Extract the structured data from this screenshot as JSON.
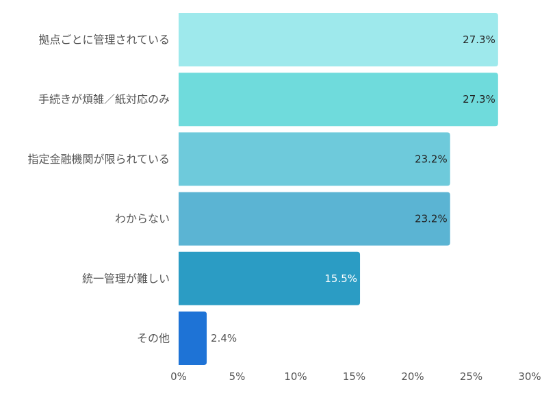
{
  "chart_data": {
    "type": "bar",
    "orientation": "horizontal",
    "categories": [
      "拠点ごとに管理されている",
      "手続きが煩雑／紙対応のみ",
      "指定金融機関が限られている",
      "わからない",
      "統一管理が難しい",
      "その他"
    ],
    "values": [
      27.3,
      27.3,
      23.2,
      23.2,
      15.5,
      2.4
    ],
    "value_labels": [
      "27.3%",
      "27.3%",
      "23.2%",
      "23.2%",
      "15.5%",
      "2.4%"
    ],
    "bar_colors": [
      "#9ee9ec",
      "#6fdbdc",
      "#6ecadb",
      "#5bb4d3",
      "#2b9cc4",
      "#1e73d6"
    ],
    "label_colors": [
      "#222222",
      "#222222",
      "#222222",
      "#222222",
      "#ffffff",
      "#555555"
    ],
    "label_inside": [
      true,
      true,
      true,
      true,
      true,
      false
    ],
    "xlim": [
      0,
      30
    ],
    "xticks": [
      0,
      5,
      10,
      15,
      20,
      25,
      30
    ],
    "xtick_labels": [
      "0%",
      "5%",
      "10%",
      "15%",
      "20%",
      "25%",
      "30%"
    ],
    "grid": false,
    "legend": "none"
  }
}
